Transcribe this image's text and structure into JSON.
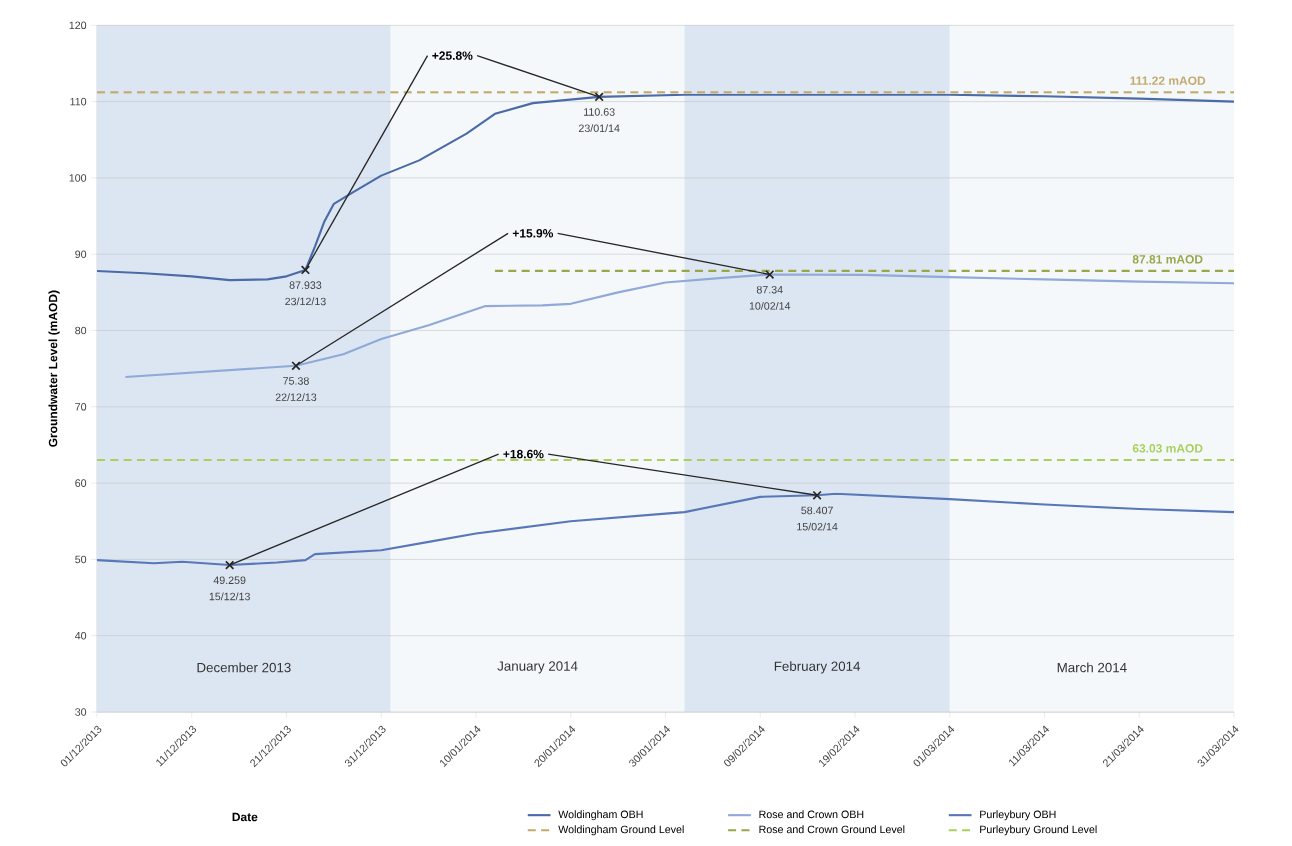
{
  "chart_data": {
    "type": "line",
    "xlabel": "Date",
    "ylabel": "Groundwater Level (mAOD)",
    "xlim": [
      "2013-12-01",
      "2014-03-31"
    ],
    "xticks": [
      {
        "value": "2013-12-01",
        "label": "01/12/2013"
      },
      {
        "value": "2013-12-11",
        "label": "11/12/2013"
      },
      {
        "value": "2013-12-21",
        "label": "21/12/2013"
      },
      {
        "value": "2013-12-31",
        "label": "31/12/2013"
      },
      {
        "value": "2014-01-10",
        "label": "10/01/2014"
      },
      {
        "value": "2014-01-20",
        "label": "20/01/2014"
      },
      {
        "value": "2014-01-30",
        "label": "30/01/2014"
      },
      {
        "value": "2014-02-09",
        "label": "09/02/2014"
      },
      {
        "value": "2014-02-19",
        "label": "19/02/2014"
      },
      {
        "value": "2014-03-01",
        "label": "01/03/2014"
      },
      {
        "value": "2014-03-11",
        "label": "11/03/2014"
      },
      {
        "value": "2014-03-21",
        "label": "21/03/2014"
      },
      {
        "value": "2014-03-31",
        "label": "31/03/2014"
      }
    ],
    "ylim": [
      30,
      120
    ],
    "yticks": [
      30,
      40,
      50,
      60,
      70,
      80,
      90,
      100,
      110,
      120
    ],
    "grid": "y",
    "legend": "bottom",
    "marker": "none",
    "series": [
      {
        "name": "Woldingham OBH",
        "color": "#4a6ba8",
        "line_style": "solid",
        "x": [
          "2013-12-01",
          "2013-12-06",
          "2013-12-11",
          "2013-12-15",
          "2013-12-19",
          "2013-12-21",
          "2013-12-23",
          "2013-12-24",
          "2013-12-25",
          "2013-12-26",
          "2013-12-28",
          "2013-12-31",
          "2014-01-04",
          "2014-01-09",
          "2014-01-12",
          "2014-01-16",
          "2014-01-23",
          "2014-02-01",
          "2014-02-15",
          "2014-03-01",
          "2014-03-11",
          "2014-03-21",
          "2014-03-31"
        ],
        "values": [
          87.8,
          87.5,
          87.1,
          86.6,
          86.7,
          87.1,
          87.933,
          91.0,
          94.3,
          96.6,
          98.1,
          100.3,
          102.3,
          105.8,
          108.4,
          109.8,
          110.63,
          110.9,
          110.9,
          110.9,
          110.7,
          110.4,
          110.0
        ]
      },
      {
        "name": "Rose and Crown OBH",
        "color": "#8fa9d8",
        "line_style": "solid",
        "x": [
          "2013-12-04",
          "2013-12-22",
          "2013-12-27",
          "2013-12-31",
          "2014-01-05",
          "2014-01-11",
          "2014-01-17",
          "2014-01-20",
          "2014-01-25",
          "2014-01-30",
          "2014-02-05",
          "2014-02-10",
          "2014-02-20",
          "2014-03-01",
          "2014-03-11",
          "2014-03-21",
          "2014-03-31"
        ],
        "values": [
          73.9,
          75.38,
          76.9,
          78.9,
          80.7,
          83.2,
          83.3,
          83.5,
          85.0,
          86.3,
          86.9,
          87.34,
          87.3,
          87.0,
          86.7,
          86.4,
          86.2
        ]
      },
      {
        "name": "Purleybury OBH",
        "color": "#5877b8",
        "line_style": "solid",
        "x": [
          "2013-12-01",
          "2013-12-07",
          "2013-12-10",
          "2013-12-15",
          "2013-12-20",
          "2013-12-23",
          "2013-12-24",
          "2013-12-31",
          "2014-01-05",
          "2014-01-10",
          "2014-01-20",
          "2014-01-30",
          "2014-02-01",
          "2014-02-09",
          "2014-02-15",
          "2014-02-17",
          "2014-03-01",
          "2014-03-11",
          "2014-03-21",
          "2014-03-31"
        ],
        "values": [
          49.9,
          49.5,
          49.7,
          49.259,
          49.6,
          49.9,
          50.7,
          51.2,
          52.3,
          53.4,
          55.0,
          56.0,
          56.2,
          58.2,
          58.407,
          58.6,
          57.9,
          57.2,
          56.6,
          56.2
        ]
      },
      {
        "name": "Woldingham Ground Level",
        "color": "#c2a96e",
        "line_style": "dashed",
        "x": [
          "2013-12-01",
          "2014-03-31"
        ],
        "values": [
          111.22,
          111.22
        ]
      },
      {
        "name": "Rose and Crown Ground Level",
        "color": "#9aa64a",
        "line_style": "dashed",
        "x": [
          "2014-01-12",
          "2014-03-31"
        ],
        "values": [
          87.81,
          87.81
        ]
      },
      {
        "name": "Purleybury Ground Level",
        "color": "#a9cf5c",
        "line_style": "dashed",
        "x": [
          "2013-12-01",
          "2014-03-31"
        ],
        "values": [
          63.03,
          63.03
        ]
      }
    ],
    "bands": [
      {
        "axis": "x",
        "from": "2013-12-01",
        "to": "2014-01-01",
        "label": "December 2013",
        "color": "#dce6f2"
      },
      {
        "axis": "x",
        "from": "2014-01-01",
        "to": "2014-02-01",
        "label": "January 2014",
        "color": "#f5f8fb"
      },
      {
        "axis": "x",
        "from": "2014-02-01",
        "to": "2014-03-01",
        "label": "February 2014",
        "color": "#dce6f2"
      },
      {
        "axis": "x",
        "from": "2014-03-01",
        "to": "2014-03-31",
        "label": "March 2014",
        "color": "#f5f8fb"
      }
    ],
    "annotations": [
      {
        "text": "+25.8%",
        "x": "2013-12-23",
        "y": 87.933
      },
      {
        "text": "87.933",
        "x": "2013-12-23",
        "y": 87.933
      },
      {
        "text": "23/12/13",
        "x": "2013-12-23",
        "y": 87.933
      },
      {
        "text": "110.63",
        "x": "2014-01-23",
        "y": 110.63
      },
      {
        "text": "23/01/14",
        "x": "2014-01-23",
        "y": 110.63
      },
      {
        "text": "+15.9%",
        "x": "2013-12-22",
        "y": 75.38
      },
      {
        "text": "75.38",
        "x": "2013-12-22",
        "y": 75.38
      },
      {
        "text": "22/12/13",
        "x": "2013-12-22",
        "y": 75.38
      },
      {
        "text": "87.34",
        "x": "2014-02-10",
        "y": 87.34
      },
      {
        "text": "10/02/14",
        "x": "2014-02-10",
        "y": 87.34
      },
      {
        "text": "+18.6%",
        "x": "2013-12-15",
        "y": 49.259
      },
      {
        "text": "49.259",
        "x": "2013-12-15",
        "y": 49.259
      },
      {
        "text": "15/12/13",
        "x": "2013-12-15",
        "y": 49.259
      },
      {
        "text": "58.407",
        "x": "2014-02-15",
        "y": 58.407
      },
      {
        "text": "15/02/14",
        "x": "2014-02-15",
        "y": 58.407
      },
      {
        "text": "111.22 mAOD",
        "x": "2014-03-24",
        "y": 111.22
      },
      {
        "text": "87.81 mAOD",
        "x": "2014-03-24",
        "y": 87.81
      },
      {
        "text": "63.03 mAOD",
        "x": "2014-03-24",
        "y": 63.03
      }
    ]
  }
}
